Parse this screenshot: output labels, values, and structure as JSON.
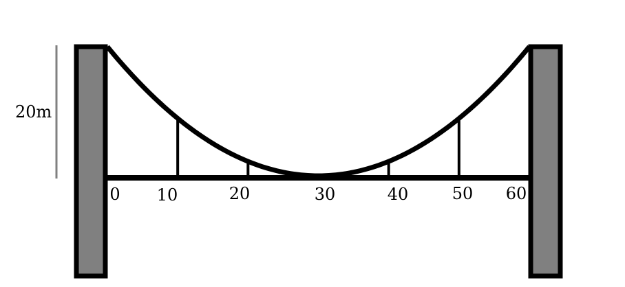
{
  "height_label": "20m",
  "tick_labels": [
    "0",
    "10",
    "20",
    "30",
    "40",
    "50",
    "60"
  ],
  "cable_low_point_x": 30,
  "span_max": 60,
  "cable_height": 20,
  "hanger_positions": [
    10,
    20,
    40,
    50
  ],
  "colors": {
    "tower_fill": "#808080",
    "stroke": "#000000",
    "dimension_line": "#808080",
    "background": "#ffffff"
  }
}
